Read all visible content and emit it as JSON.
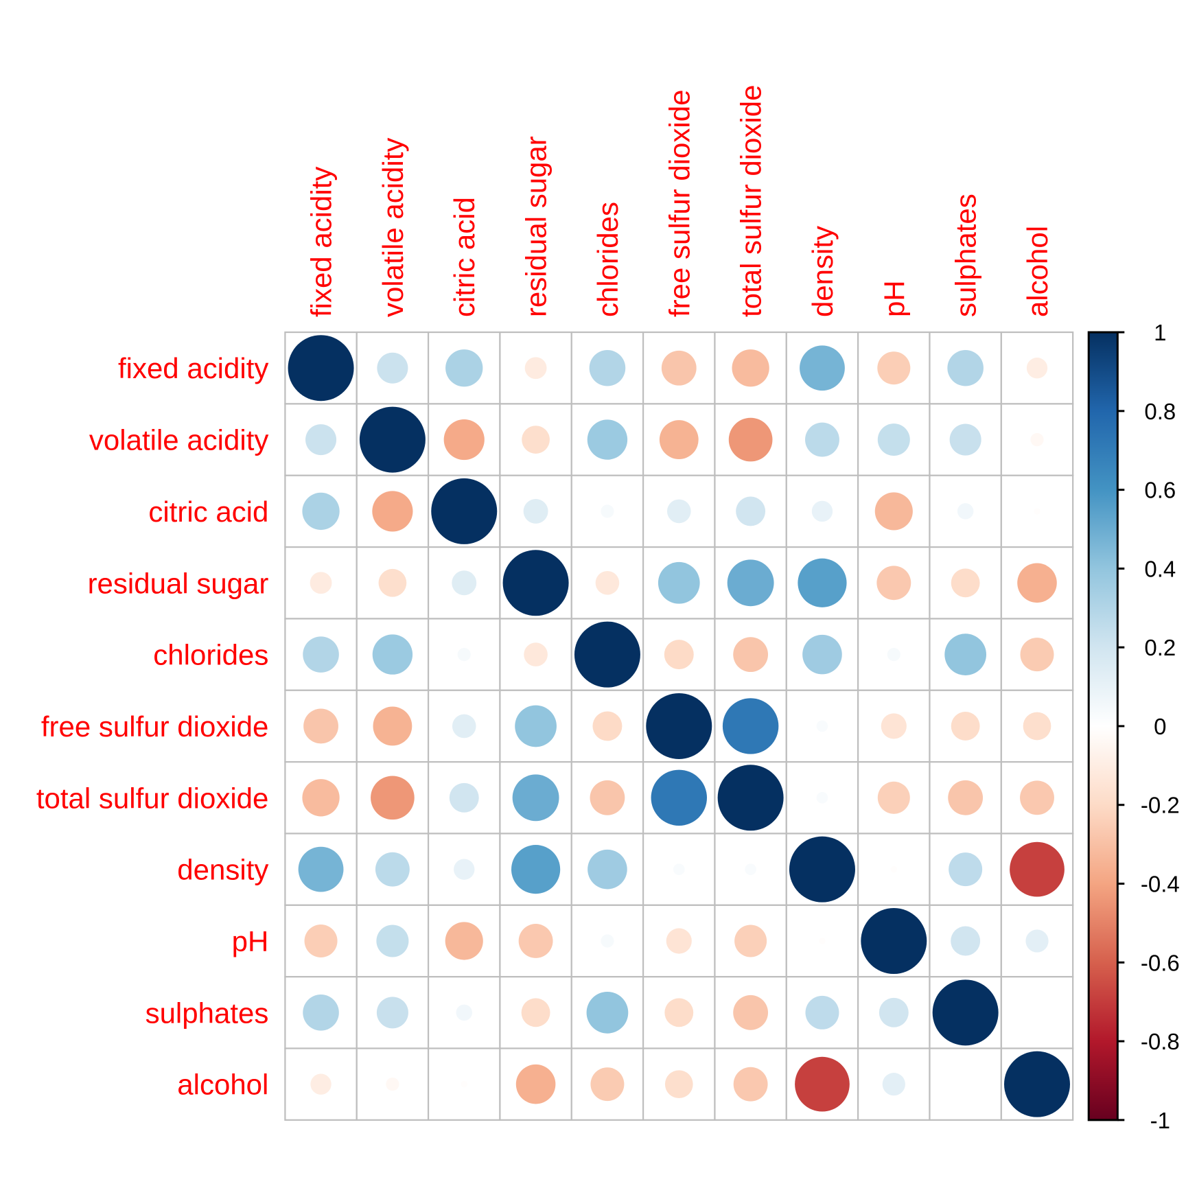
{
  "chart_data": {
    "type": "heatmap",
    "subtype": "correlation-circles",
    "title": "",
    "variables": [
      "fixed acidity",
      "volatile acidity",
      "citric acid",
      "residual sugar",
      "chlorides",
      "free sulfur dioxide",
      "total sulfur dioxide",
      "density",
      "pH",
      "sulphates",
      "alcohol"
    ],
    "matrix": [
      [
        1.0,
        0.22,
        0.32,
        -0.11,
        0.3,
        -0.28,
        -0.32,
        0.47,
        -0.25,
        0.3,
        -0.1
      ],
      [
        0.22,
        1.0,
        -0.38,
        -0.18,
        0.37,
        -0.35,
        -0.44,
        0.27,
        0.24,
        0.23,
        -0.04
      ],
      [
        0.32,
        -0.38,
        1.0,
        0.14,
        0.04,
        0.13,
        0.2,
        0.1,
        -0.33,
        0.06,
        -0.01
      ],
      [
        -0.11,
        -0.18,
        0.14,
        1.0,
        -0.13,
        0.4,
        0.5,
        0.55,
        -0.27,
        -0.19,
        -0.36
      ],
      [
        0.3,
        0.37,
        0.04,
        -0.13,
        1.0,
        -0.2,
        -0.28,
        0.36,
        0.04,
        0.4,
        -0.26
      ],
      [
        -0.28,
        -0.35,
        0.13,
        0.4,
        -0.2,
        1.0,
        0.72,
        0.03,
        -0.15,
        -0.19,
        -0.18
      ],
      [
        -0.32,
        -0.44,
        0.2,
        0.5,
        -0.28,
        0.72,
        1.0,
        0.03,
        -0.24,
        -0.28,
        -0.27
      ],
      [
        0.47,
        0.27,
        0.1,
        0.55,
        0.36,
        0.03,
        0.03,
        1.0,
        -0.01,
        0.26,
        -0.69
      ],
      [
        -0.25,
        0.24,
        -0.33,
        -0.27,
        0.04,
        -0.15,
        -0.24,
        -0.01,
        1.0,
        0.2,
        0.12
      ],
      [
        0.3,
        0.23,
        0.06,
        -0.19,
        0.4,
        -0.19,
        -0.28,
        0.26,
        0.2,
        1.0,
        0.0
      ],
      [
        -0.1,
        -0.04,
        -0.01,
        -0.36,
        -0.26,
        -0.18,
        -0.27,
        -0.69,
        0.12,
        0.0,
        1.0
      ]
    ],
    "colorbar": {
      "range": [
        -1,
        1
      ],
      "ticks": [
        "1",
        "0.8",
        "0.6",
        "0.4",
        "0.2",
        "0",
        "-0.2",
        "-0.4",
        "-0.6",
        "-0.8",
        "-1"
      ],
      "tick_values": [
        1,
        0.8,
        0.6,
        0.4,
        0.2,
        0,
        -0.2,
        -0.4,
        -0.6,
        -0.8,
        -1
      ],
      "placement": "right"
    },
    "palette": [
      "#67001F",
      "#B2182B",
      "#D6604D",
      "#F4A582",
      "#FDDBC7",
      "#FFFFFF",
      "#D1E5F0",
      "#92C5DE",
      "#4393C3",
      "#2166AC",
      "#053061"
    ],
    "label_color": "#FF0000",
    "grid_color": "#BEBEBE"
  }
}
